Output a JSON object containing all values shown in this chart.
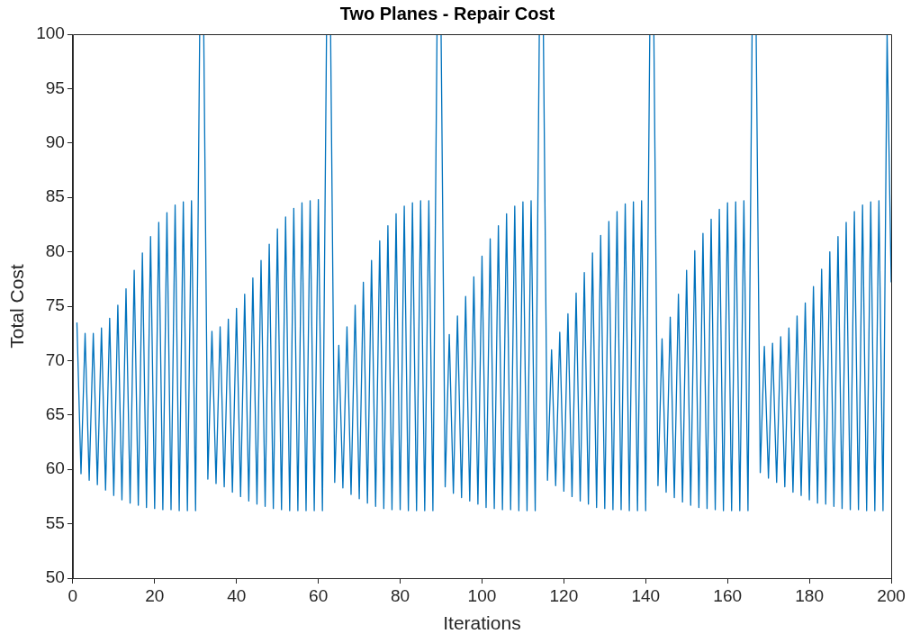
{
  "chart_data": {
    "type": "line",
    "title": "Two Planes - Repair Cost",
    "xlabel": "Iterations",
    "ylabel": "Total Cost",
    "color": "#0072bd",
    "xlim": [
      0,
      200
    ],
    "xticks": [
      0,
      20,
      40,
      60,
      80,
      100,
      120,
      140,
      160,
      180,
      200
    ],
    "ylim": [
      50,
      100
    ],
    "yticks": [
      50,
      55,
      60,
      65,
      70,
      75,
      80,
      85,
      90,
      95,
      100
    ],
    "x": [
      1,
      2,
      3,
      4,
      5,
      6,
      7,
      8,
      9,
      10,
      11,
      12,
      13,
      14,
      15,
      16,
      17,
      18,
      19,
      20,
      21,
      22,
      23,
      24,
      25,
      26,
      27,
      28,
      29,
      30,
      31,
      32,
      33,
      34,
      35,
      36,
      37,
      38,
      39,
      40,
      41,
      42,
      43,
      44,
      45,
      46,
      47,
      48,
      49,
      50,
      51,
      52,
      53,
      54,
      55,
      56,
      57,
      58,
      59,
      60,
      61,
      62,
      63,
      64,
      65,
      66,
      67,
      68,
      69,
      70,
      71,
      72,
      73,
      74,
      75,
      76,
      77,
      78,
      79,
      80,
      81,
      82,
      83,
      84,
      85,
      86,
      87,
      88,
      89,
      90,
      91,
      92,
      93,
      94,
      95,
      96,
      97,
      98,
      99,
      100,
      101,
      102,
      103,
      104,
      105,
      106,
      107,
      108,
      109,
      110,
      111,
      112,
      113,
      114,
      115,
      116,
      117,
      118,
      119,
      120,
      121,
      122,
      123,
      124,
      125,
      126,
      127,
      128,
      129,
      130,
      131,
      132,
      133,
      134,
      135,
      136,
      137,
      138,
      139,
      140,
      141,
      142,
      143,
      144,
      145,
      146,
      147,
      148,
      149,
      150,
      151,
      152,
      153,
      154,
      155,
      156,
      157,
      158,
      159,
      160,
      161,
      162,
      163,
      164,
      165,
      166,
      167,
      168,
      169,
      170,
      171,
      172,
      173,
      174,
      175,
      176,
      177,
      178,
      179,
      180,
      181,
      182,
      183,
      184,
      185,
      186,
      187,
      188,
      189,
      190,
      191,
      192,
      193,
      194,
      195,
      196,
      197,
      198,
      199,
      200
    ],
    "values": [
      73.5,
      59.6,
      72.5,
      59.0,
      72.5,
      58.6,
      73.0,
      58.1,
      73.9,
      57.6,
      75.1,
      57.2,
      76.6,
      56.9,
      78.3,
      56.7,
      79.9,
      56.5,
      81.4,
      56.4,
      82.7,
      56.3,
      83.6,
      56.3,
      84.3,
      56.2,
      84.6,
      56.2,
      84.7,
      56.2,
      100,
      100,
      59.1,
      72.7,
      58.7,
      73.1,
      58.4,
      73.8,
      57.9,
      74.8,
      57.5,
      76.1,
      57.1,
      77.6,
      56.8,
      79.2,
      56.6,
      80.7,
      56.4,
      82.1,
      56.3,
      83.2,
      56.2,
      84.0,
      56.2,
      84.5,
      56.2,
      84.7,
      56.2,
      84.8,
      56.2,
      100,
      100,
      58.8,
      71.4,
      58.3,
      73.1,
      57.7,
      75.1,
      57.3,
      77.2,
      56.9,
      79.2,
      56.6,
      81.0,
      56.4,
      82.4,
      56.3,
      83.5,
      56.3,
      84.2,
      56.2,
      84.5,
      56.2,
      84.7,
      56.2,
      84.7,
      56.2,
      100,
      100,
      58.4,
      72.4,
      57.8,
      74.1,
      57.4,
      75.9,
      57.1,
      77.7,
      56.8,
      79.6,
      56.5,
      81.2,
      56.4,
      82.4,
      56.3,
      83.5,
      56.3,
      84.2,
      56.2,
      84.6,
      56.2,
      84.7,
      56.2,
      100,
      100,
      59.0,
      71.0,
      58.5,
      72.6,
      58.0,
      74.3,
      57.5,
      76.2,
      57.1,
      78.1,
      56.8,
      79.9,
      56.5,
      81.5,
      56.4,
      82.8,
      56.3,
      83.7,
      56.3,
      84.4,
      56.2,
      84.6,
      56.2,
      84.7,
      56.2,
      100,
      100,
      58.5,
      72.0,
      57.9,
      74.0,
      57.4,
      76.1,
      57.0,
      78.3,
      56.7,
      80.1,
      56.5,
      81.7,
      56.4,
      83.0,
      56.3,
      83.9,
      56.2,
      84.5,
      56.2,
      84.6,
      56.2,
      84.7,
      56.2,
      100,
      100,
      59.7,
      71.3,
      59.2,
      71.6,
      58.8,
      72.2,
      58.4,
      73.0,
      57.9,
      74.1,
      57.6,
      75.3,
      57.2,
      76.8,
      56.9,
      78.4,
      56.8,
      80.0,
      56.6,
      81.4,
      56.4,
      82.7,
      56.3,
      83.7,
      56.3,
      84.3,
      56.2,
      84.6,
      56.2,
      84.7,
      56.2,
      100,
      77.2
    ]
  }
}
